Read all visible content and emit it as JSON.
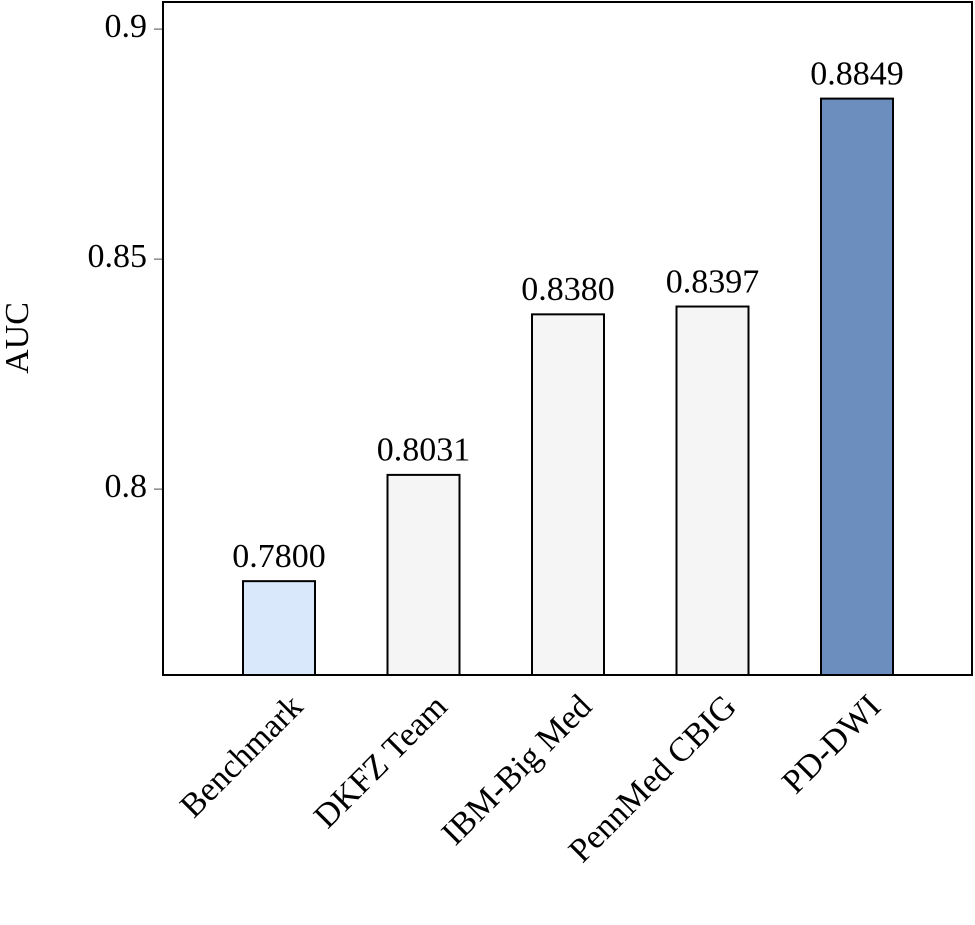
{
  "chart_data": {
    "type": "bar",
    "y_label": "AUC",
    "categories": [
      "Benchmark",
      "DKFZ Team",
      "IBM-Big Med",
      "PennMed CBIG",
      "PD-DWI"
    ],
    "values": [
      0.78,
      0.8031,
      0.838,
      0.8397,
      0.8849
    ],
    "value_labels": [
      "0.7800",
      "0.8031",
      "0.8380",
      "0.8397",
      "0.8849"
    ],
    "colors": [
      "#dae8fc",
      "#f5f5f5",
      "#f5f5f5",
      "#f5f5f5",
      "#6c8ebf"
    ],
    "ylim": [
      0.7596,
      0.9059
    ],
    "yticks": [
      {
        "value": 0.8,
        "label": "0.8"
      },
      {
        "value": 0.85,
        "label": "0.85"
      },
      {
        "value": 0.9,
        "label": "0.9"
      }
    ],
    "grid": false
  }
}
